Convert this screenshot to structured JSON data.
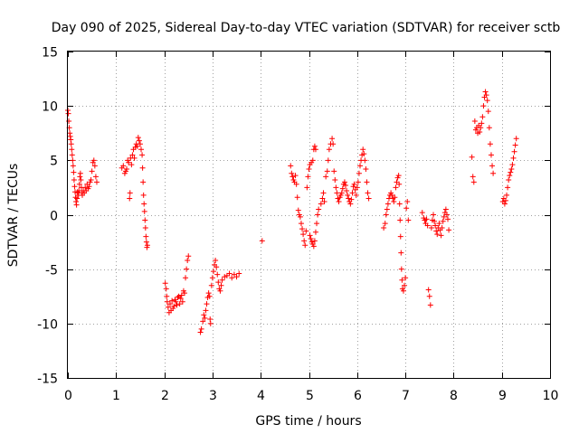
{
  "chart_data": {
    "type": "scatter",
    "title": "Day 090 of 2025, Sidereal Day-to-day VTEC variation (SDTVAR) for receiver sctb",
    "xlabel": "GPS time / hours",
    "ylabel": "SDTVAR / TECUs",
    "xlim": [
      0,
      10
    ],
    "ylim": [
      -15,
      15
    ],
    "x_ticks": [
      0,
      1,
      2,
      3,
      4,
      5,
      6,
      7,
      8,
      9,
      10
    ],
    "y_ticks": [
      -15,
      -10,
      -5,
      0,
      5,
      10,
      15
    ],
    "x_tick_labels": [
      "0",
      "1",
      "2",
      "3",
      "4",
      "5",
      "6",
      "7",
      "8",
      "9",
      "10"
    ],
    "y_tick_labels": [
      "-15",
      "-10",
      "-5",
      "0",
      "5",
      "10",
      "15"
    ],
    "grid": true,
    "marker": "+",
    "color": "#ff0000",
    "series": [
      {
        "name": "sctb",
        "points": [
          [
            0.0,
            9.6
          ],
          [
            0.01,
            9.3
          ],
          [
            0.02,
            8.6
          ],
          [
            0.03,
            8.0
          ],
          [
            0.04,
            7.5
          ],
          [
            0.05,
            7.2
          ],
          [
            0.06,
            6.9
          ],
          [
            0.07,
            6.5
          ],
          [
            0.08,
            6.0
          ],
          [
            0.09,
            5.5
          ],
          [
            0.1,
            5.0
          ],
          [
            0.11,
            4.5
          ],
          [
            0.12,
            3.9
          ],
          [
            0.13,
            3.2
          ],
          [
            0.14,
            2.6
          ],
          [
            0.15,
            2.1
          ],
          [
            0.16,
            1.6
          ],
          [
            0.17,
            1.2
          ],
          [
            0.18,
            0.9
          ],
          [
            0.19,
            1.5
          ],
          [
            0.2,
            2.1
          ],
          [
            0.21,
            2.0
          ],
          [
            0.22,
            1.8
          ],
          [
            0.23,
            2.2
          ],
          [
            0.24,
            2.8
          ],
          [
            0.25,
            3.5
          ],
          [
            0.26,
            3.8
          ],
          [
            0.27,
            3.2
          ],
          [
            0.28,
            2.5
          ],
          [
            0.29,
            2.0
          ],
          [
            0.3,
            1.8
          ],
          [
            0.32,
            2.2
          ],
          [
            0.34,
            2.0
          ],
          [
            0.36,
            2.5
          ],
          [
            0.38,
            2.2
          ],
          [
            0.4,
            2.8
          ],
          [
            0.42,
            2.4
          ],
          [
            0.44,
            2.6
          ],
          [
            0.46,
            3.0
          ],
          [
            0.48,
            3.2
          ],
          [
            0.5,
            4.0
          ],
          [
            0.52,
            4.8
          ],
          [
            0.54,
            5.0
          ],
          [
            0.56,
            4.5
          ],
          [
            0.58,
            3.5
          ],
          [
            0.6,
            3.0
          ],
          [
            1.12,
            4.3
          ],
          [
            1.15,
            4.5
          ],
          [
            1.18,
            3.8
          ],
          [
            1.2,
            4.0
          ],
          [
            1.22,
            4.2
          ],
          [
            1.24,
            5.0
          ],
          [
            1.26,
            4.8
          ],
          [
            1.28,
            1.5
          ],
          [
            1.29,
            2.0
          ],
          [
            1.3,
            5.2
          ],
          [
            1.32,
            4.6
          ],
          [
            1.34,
            5.5
          ],
          [
            1.36,
            6.0
          ],
          [
            1.38,
            5.2
          ],
          [
            1.4,
            6.2
          ],
          [
            1.42,
            6.5
          ],
          [
            1.44,
            6.3
          ],
          [
            1.46,
            7.1
          ],
          [
            1.48,
            6.8
          ],
          [
            1.5,
            6.5
          ],
          [
            1.52,
            6.0
          ],
          [
            1.54,
            5.5
          ],
          [
            1.55,
            4.3
          ],
          [
            1.56,
            3.0
          ],
          [
            1.57,
            1.8
          ],
          [
            1.58,
            1.0
          ],
          [
            1.59,
            0.3
          ],
          [
            1.6,
            -0.5
          ],
          [
            1.61,
            -1.2
          ],
          [
            1.62,
            -2.0
          ],
          [
            1.63,
            -2.5
          ],
          [
            1.64,
            -3.0
          ],
          [
            1.65,
            -2.8
          ],
          [
            2.02,
            -6.3
          ],
          [
            2.04,
            -6.8
          ],
          [
            2.05,
            -7.5
          ],
          [
            2.06,
            -8.0
          ],
          [
            2.08,
            -8.5
          ],
          [
            2.1,
            -9.0
          ],
          [
            2.12,
            -8.2
          ],
          [
            2.14,
            -8.8
          ],
          [
            2.16,
            -7.9
          ],
          [
            2.18,
            -8.6
          ],
          [
            2.2,
            -8.4
          ],
          [
            2.22,
            -7.8
          ],
          [
            2.24,
            -8.0
          ],
          [
            2.26,
            -8.3
          ],
          [
            2.28,
            -7.6
          ],
          [
            2.3,
            -7.5
          ],
          [
            2.32,
            -8.2
          ],
          [
            2.34,
            -7.7
          ],
          [
            2.36,
            -7.4
          ],
          [
            2.38,
            -8.0
          ],
          [
            2.4,
            -7.0
          ],
          [
            2.42,
            -7.2
          ],
          [
            2.44,
            -5.8
          ],
          [
            2.46,
            -5.0
          ],
          [
            2.48,
            -4.2
          ],
          [
            2.5,
            -3.8
          ],
          [
            2.75,
            -10.8
          ],
          [
            2.77,
            -10.5
          ],
          [
            2.8,
            -9.8
          ],
          [
            2.82,
            -9.2
          ],
          [
            2.84,
            -9.5
          ],
          [
            2.86,
            -8.8
          ],
          [
            2.88,
            -8.2
          ],
          [
            2.9,
            -7.6
          ],
          [
            2.92,
            -7.2
          ],
          [
            2.94,
            -7.5
          ],
          [
            2.95,
            -9.6
          ],
          [
            2.96,
            -10.0
          ],
          [
            2.98,
            -6.5
          ],
          [
            3.0,
            -5.8
          ],
          [
            3.02,
            -5.2
          ],
          [
            3.04,
            -4.6
          ],
          [
            3.06,
            -4.2
          ],
          [
            3.08,
            -4.8
          ],
          [
            3.1,
            -5.5
          ],
          [
            3.12,
            -6.2
          ],
          [
            3.14,
            -6.8
          ],
          [
            3.16,
            -7.0
          ],
          [
            3.18,
            -6.5
          ],
          [
            3.2,
            -6.0
          ],
          [
            3.25,
            -5.7
          ],
          [
            3.3,
            -5.6
          ],
          [
            3.35,
            -5.4
          ],
          [
            3.4,
            -5.8
          ],
          [
            3.45,
            -5.5
          ],
          [
            3.5,
            -5.7
          ],
          [
            3.55,
            -5.4
          ],
          [
            4.03,
            -2.4
          ],
          [
            4.62,
            4.5
          ],
          [
            4.64,
            3.8
          ],
          [
            4.66,
            3.5
          ],
          [
            4.68,
            3.2
          ],
          [
            4.7,
            3.0
          ],
          [
            4.72,
            3.6
          ],
          [
            4.74,
            2.8
          ],
          [
            4.76,
            1.6
          ],
          [
            4.78,
            0.4
          ],
          [
            4.8,
            0.0
          ],
          [
            4.82,
            -0.2
          ],
          [
            4.84,
            -0.8
          ],
          [
            4.86,
            -1.3
          ],
          [
            4.88,
            -1.8
          ],
          [
            4.9,
            -2.4
          ],
          [
            4.92,
            -2.8
          ],
          [
            4.94,
            -1.5
          ],
          [
            4.96,
            2.5
          ],
          [
            4.98,
            3.5
          ],
          [
            5.0,
            4.2
          ],
          [
            5.02,
            -1.9
          ],
          [
            5.04,
            -2.2
          ],
          [
            5.06,
            -2.5
          ],
          [
            5.08,
            -2.7
          ],
          [
            5.1,
            -2.9
          ],
          [
            5.12,
            -2.4
          ],
          [
            5.14,
            -1.6
          ],
          [
            5.16,
            -0.8
          ],
          [
            5.18,
            0.0
          ],
          [
            5.2,
            0.5
          ],
          [
            5.02,
            4.6
          ],
          [
            5.05,
            4.8
          ],
          [
            5.08,
            5.0
          ],
          [
            5.1,
            6.0
          ],
          [
            5.12,
            6.3
          ],
          [
            5.14,
            6.0
          ],
          [
            5.25,
            1.0
          ],
          [
            5.28,
            1.5
          ],
          [
            5.3,
            2.0
          ],
          [
            5.32,
            1.2
          ],
          [
            5.35,
            3.5
          ],
          [
            5.38,
            4.0
          ],
          [
            5.4,
            5.0
          ],
          [
            5.42,
            6.0
          ],
          [
            5.45,
            6.5
          ],
          [
            5.48,
            7.0
          ],
          [
            5.5,
            6.5
          ],
          [
            5.52,
            4.0
          ],
          [
            5.54,
            3.2
          ],
          [
            5.56,
            2.5
          ],
          [
            5.58,
            2.0
          ],
          [
            5.6,
            1.5
          ],
          [
            5.62,
            1.2
          ],
          [
            5.64,
            1.6
          ],
          [
            5.66,
            1.8
          ],
          [
            5.68,
            2.0
          ],
          [
            5.7,
            2.4
          ],
          [
            5.72,
            2.8
          ],
          [
            5.74,
            3.0
          ],
          [
            5.76,
            2.7
          ],
          [
            5.78,
            2.2
          ],
          [
            5.8,
            1.8
          ],
          [
            5.82,
            1.5
          ],
          [
            5.84,
            1.2
          ],
          [
            5.86,
            1.0
          ],
          [
            5.88,
            1.4
          ],
          [
            5.9,
            2.0
          ],
          [
            5.92,
            2.6
          ],
          [
            5.94,
            2.8
          ],
          [
            5.96,
            2.3
          ],
          [
            5.98,
            1.8
          ],
          [
            6.0,
            2.5
          ],
          [
            6.02,
            3.0
          ],
          [
            6.04,
            3.8
          ],
          [
            6.06,
            4.5
          ],
          [
            6.08,
            5.0
          ],
          [
            6.1,
            5.5
          ],
          [
            6.12,
            6.0
          ],
          [
            6.14,
            5.6
          ],
          [
            6.16,
            5.0
          ],
          [
            6.18,
            4.2
          ],
          [
            6.2,
            3.0
          ],
          [
            6.22,
            2.0
          ],
          [
            6.24,
            1.5
          ],
          [
            6.55,
            -1.2
          ],
          [
            6.58,
            -0.8
          ],
          [
            6.6,
            0.0
          ],
          [
            6.62,
            0.5
          ],
          [
            6.64,
            1.0
          ],
          [
            6.66,
            1.5
          ],
          [
            6.68,
            1.8
          ],
          [
            6.7,
            2.0
          ],
          [
            6.72,
            1.8
          ],
          [
            6.74,
            1.5
          ],
          [
            6.76,
            1.2
          ],
          [
            6.78,
            1.6
          ],
          [
            6.8,
            2.5
          ],
          [
            6.82,
            3.0
          ],
          [
            6.84,
            3.4
          ],
          [
            6.86,
            3.6
          ],
          [
            6.87,
            2.8
          ],
          [
            6.88,
            1.0
          ],
          [
            6.89,
            -0.5
          ],
          [
            6.9,
            -2.0
          ],
          [
            6.91,
            -3.5
          ],
          [
            6.92,
            -5.0
          ],
          [
            6.93,
            -6.0
          ],
          [
            6.94,
            -6.8
          ],
          [
            6.96,
            -7.0
          ],
          [
            6.98,
            -6.5
          ],
          [
            7.0,
            -5.8
          ],
          [
            7.02,
            0.6
          ],
          [
            7.04,
            1.2
          ],
          [
            7.06,
            -0.5
          ],
          [
            7.35,
            0.2
          ],
          [
            7.38,
            -0.3
          ],
          [
            7.4,
            -0.5
          ],
          [
            7.42,
            -0.8
          ],
          [
            7.44,
            -0.4
          ],
          [
            7.46,
            -1.0
          ],
          [
            7.48,
            -6.9
          ],
          [
            7.5,
            -7.5
          ],
          [
            7.52,
            -8.3
          ],
          [
            7.54,
            -1.2
          ],
          [
            7.56,
            -0.5
          ],
          [
            7.58,
            0.0
          ],
          [
            7.6,
            -0.6
          ],
          [
            7.62,
            -1.0
          ],
          [
            7.64,
            -1.5
          ],
          [
            7.66,
            -1.8
          ],
          [
            7.68,
            -1.2
          ],
          [
            7.7,
            -0.8
          ],
          [
            7.72,
            -1.4
          ],
          [
            7.74,
            -1.9
          ],
          [
            7.76,
            -1.2
          ],
          [
            7.78,
            -0.6
          ],
          [
            7.8,
            -0.2
          ],
          [
            7.82,
            0.2
          ],
          [
            7.84,
            0.5
          ],
          [
            7.86,
            0.0
          ],
          [
            7.88,
            -0.4
          ],
          [
            7.9,
            -1.4
          ],
          [
            8.38,
            5.3
          ],
          [
            8.4,
            3.5
          ],
          [
            8.42,
            3.0
          ],
          [
            8.44,
            8.6
          ],
          [
            8.46,
            7.8
          ],
          [
            8.48,
            8.0
          ],
          [
            8.5,
            7.5
          ],
          [
            8.52,
            8.2
          ],
          [
            8.54,
            7.6
          ],
          [
            8.56,
            8.0
          ],
          [
            8.58,
            8.4
          ],
          [
            8.6,
            9.0
          ],
          [
            8.62,
            10.0
          ],
          [
            8.64,
            10.8
          ],
          [
            8.66,
            11.3
          ],
          [
            8.68,
            11.0
          ],
          [
            8.7,
            10.5
          ],
          [
            8.72,
            9.5
          ],
          [
            8.74,
            8.0
          ],
          [
            8.76,
            6.5
          ],
          [
            8.78,
            5.5
          ],
          [
            8.8,
            4.5
          ],
          [
            8.82,
            3.8
          ],
          [
            9.02,
            1.2
          ],
          [
            9.04,
            1.5
          ],
          [
            9.06,
            1.0
          ],
          [
            9.08,
            1.3
          ],
          [
            9.1,
            1.8
          ],
          [
            9.12,
            2.5
          ],
          [
            9.14,
            3.2
          ],
          [
            9.16,
            3.6
          ],
          [
            9.18,
            3.9
          ],
          [
            9.2,
            4.2
          ],
          [
            9.22,
            4.6
          ],
          [
            9.24,
            5.2
          ],
          [
            9.26,
            5.8
          ],
          [
            9.28,
            6.4
          ],
          [
            9.3,
            7.0
          ]
        ]
      }
    ]
  }
}
